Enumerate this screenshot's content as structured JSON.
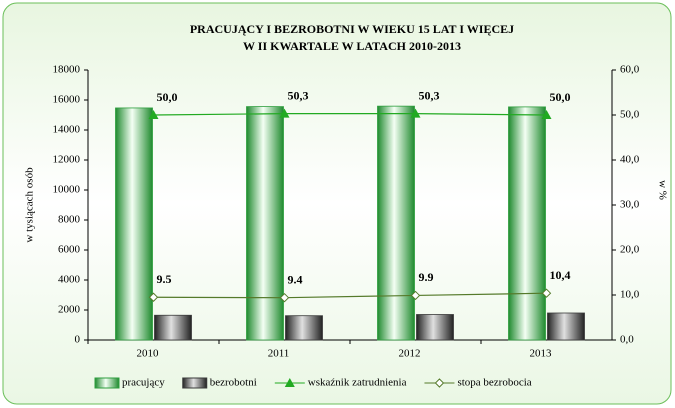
{
  "chart_data": {
    "type": "bar_line",
    "title": [
      "PRACUJĄCY  I  BEZROBOTNI  W  WIEKU  15  LAT I WIĘCEJ",
      "W  II  KWARTALE  W  LATACH  2010-2013"
    ],
    "y_label": "w tysiącach osób",
    "y2_label": "w %",
    "categories": [
      "2010",
      "2011",
      "2012",
      "2013"
    ],
    "series": [
      {
        "name": "pracujący",
        "type": "bar",
        "color": "#2e9e3e",
        "values": [
          15470,
          15560,
          15590,
          15540
        ]
      },
      {
        "name": "bezrobotni",
        "type": "bar",
        "color": "#3a3a3a",
        "values": [
          1650,
          1620,
          1700,
          1800
        ]
      },
      {
        "name": "wskaźnik zatrudnienia",
        "type": "line",
        "axis": "y2",
        "color": "#22aa22",
        "marker": "triangle",
        "values": [
          50.0,
          50.3,
          50.3,
          50.0
        ],
        "value_labels": [
          "50,0",
          "50,3",
          "50,3",
          "50,0"
        ]
      },
      {
        "name": "stopa bezrobocia",
        "type": "line",
        "axis": "y2",
        "color": "#557a2a",
        "marker": "diamond",
        "values": [
          9.5,
          9.4,
          9.9,
          10.4
        ],
        "value_labels": [
          "9.5",
          "9.4",
          "9.9",
          "10,4"
        ]
      }
    ],
    "ylim": [
      0,
      18000
    ],
    "yticks": [
      0,
      2000,
      4000,
      6000,
      8000,
      10000,
      12000,
      14000,
      16000,
      18000
    ],
    "y2lim": [
      0,
      60
    ],
    "y2ticks": [
      {
        "value": 0,
        "label": "0,0"
      },
      {
        "value": 10,
        "label": "10,0"
      },
      {
        "value": 20,
        "label": "20,0"
      },
      {
        "value": 30,
        "label": "30,0"
      },
      {
        "value": 40,
        "label": "40,0"
      },
      {
        "value": 50,
        "label": "50,0"
      },
      {
        "value": 60,
        "label": "60,0"
      }
    ],
    "legend": "bottom"
  }
}
